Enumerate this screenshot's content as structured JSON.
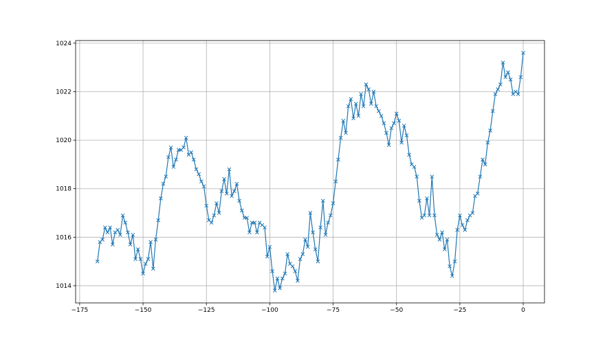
{
  "chart_data": {
    "type": "line",
    "x": [
      -168,
      -167,
      -166,
      -165,
      -164,
      -163,
      -162,
      -161,
      -160,
      -159,
      -158,
      -157,
      -156,
      -155,
      -154,
      -153,
      -152,
      -151,
      -150,
      -149,
      -148,
      -147,
      -146,
      -145,
      -144,
      -143,
      -142,
      -141,
      -140,
      -139,
      -138,
      -137,
      -136,
      -135,
      -134,
      -133,
      -132,
      -131,
      -130,
      -129,
      -128,
      -127,
      -126,
      -125,
      -124,
      -123,
      -122,
      -121,
      -120,
      -119,
      -118,
      -117,
      -116,
      -115,
      -114,
      -113,
      -112,
      -111,
      -110,
      -109,
      -108,
      -107,
      -106,
      -105,
      -104,
      -103,
      -102,
      -101,
      -100,
      -99,
      -98,
      -97,
      -96,
      -95,
      -94,
      -93,
      -92,
      -91,
      -90,
      -89,
      -88,
      -87,
      -86,
      -85,
      -84,
      -83,
      -82,
      -81,
      -80,
      -79,
      -78,
      -77,
      -76,
      -75,
      -74,
      -73,
      -72,
      -71,
      -70,
      -69,
      -68,
      -67,
      -66,
      -65,
      -64,
      -63,
      -62,
      -61,
      -60,
      -59,
      -58,
      -57,
      -56,
      -55,
      -54,
      -53,
      -52,
      -51,
      -50,
      -49,
      -48,
      -47,
      -46,
      -45,
      -44,
      -43,
      -42,
      -41,
      -40,
      -39,
      -38,
      -37,
      -36,
      -35,
      -34,
      -33,
      -32,
      -31,
      -30,
      -29,
      -28,
      -27,
      -26,
      -25,
      -24,
      -23,
      -22,
      -21,
      -20,
      -19,
      -18,
      -17,
      -16,
      -15,
      -14,
      -13,
      -12,
      -11,
      -10,
      -9,
      -8,
      -7,
      -6,
      -5,
      -4,
      -3,
      -2,
      -1,
      0
    ],
    "values": [
      1015.0,
      1015.8,
      1015.9,
      1016.4,
      1016.2,
      1016.4,
      1015.7,
      1016.2,
      1016.3,
      1016.1,
      1016.9,
      1016.6,
      1016.2,
      1015.7,
      1016.1,
      1015.1,
      1015.5,
      1015.1,
      1014.5,
      1014.9,
      1015.1,
      1015.8,
      1014.7,
      1015.9,
      1016.7,
      1017.6,
      1018.2,
      1018.5,
      1019.3,
      1019.7,
      1018.9,
      1019.2,
      1019.6,
      1019.6,
      1019.7,
      1020.1,
      1019.4,
      1019.5,
      1019.2,
      1018.8,
      1018.6,
      1018.3,
      1018.1,
      1017.3,
      1016.7,
      1016.6,
      1016.9,
      1017.4,
      1017.0,
      1017.9,
      1018.4,
      1017.8,
      1018.8,
      1017.7,
      1017.9,
      1018.2,
      1017.5,
      1017.1,
      1016.8,
      1016.8,
      1016.2,
      1016.6,
      1016.6,
      1016.2,
      1016.6,
      1016.5,
      1016.4,
      1015.2,
      1015.6,
      1014.6,
      1013.8,
      1014.3,
      1013.9,
      1014.3,
      1014.5,
      1015.3,
      1014.9,
      1014.8,
      1014.6,
      1014.2,
      1015.1,
      1015.3,
      1015.9,
      1015.6,
      1017.0,
      1016.2,
      1015.5,
      1015.0,
      1016.4,
      1017.5,
      1016.1,
      1016.6,
      1016.9,
      1017.4,
      1018.3,
      1019.2,
      1020.1,
      1020.8,
      1020.3,
      1021.4,
      1021.7,
      1020.9,
      1021.5,
      1021.0,
      1021.9,
      1021.4,
      1022.3,
      1022.1,
      1021.5,
      1022.0,
      1021.4,
      1021.2,
      1021.0,
      1020.7,
      1020.3,
      1019.8,
      1020.5,
      1020.7,
      1021.1,
      1020.8,
      1019.9,
      1020.6,
      1020.2,
      1019.4,
      1019.0,
      1018.9,
      1018.5,
      1017.5,
      1016.8,
      1016.9,
      1017.6,
      1016.9,
      1018.5,
      1016.9,
      1016.1,
      1015.9,
      1016.2,
      1015.5,
      1015.9,
      1014.8,
      1014.4,
      1015.0,
      1016.3,
      1016.9,
      1016.5,
      1016.3,
      1016.7,
      1016.9,
      1017.0,
      1017.7,
      1017.8,
      1018.5,
      1019.2,
      1019.0,
      1019.9,
      1020.4,
      1021.2,
      1021.9,
      1022.1,
      1022.3,
      1023.2,
      1022.6,
      1022.8,
      1022.5,
      1021.9,
      1022.0,
      1021.9,
      1022.6,
      1023.6
    ],
    "color": "#1f77b4",
    "marker": "x",
    "xlim": [
      -176.6,
      8.4
    ],
    "xticks": [
      {
        "value": -175,
        "label": "−175"
      },
      {
        "value": -150,
        "label": "−150"
      },
      {
        "value": -125,
        "label": "−125"
      },
      {
        "value": -100,
        "label": "−100"
      },
      {
        "value": -75,
        "label": "−75"
      },
      {
        "value": -50,
        "label": "−50"
      },
      {
        "value": -25,
        "label": "−25"
      },
      0
    ],
    "ylim": [
      1013.29,
      1024.11
    ],
    "yticks": [
      1014,
      1016,
      1018,
      1020,
      1022,
      1024
    ],
    "grid": true
  }
}
